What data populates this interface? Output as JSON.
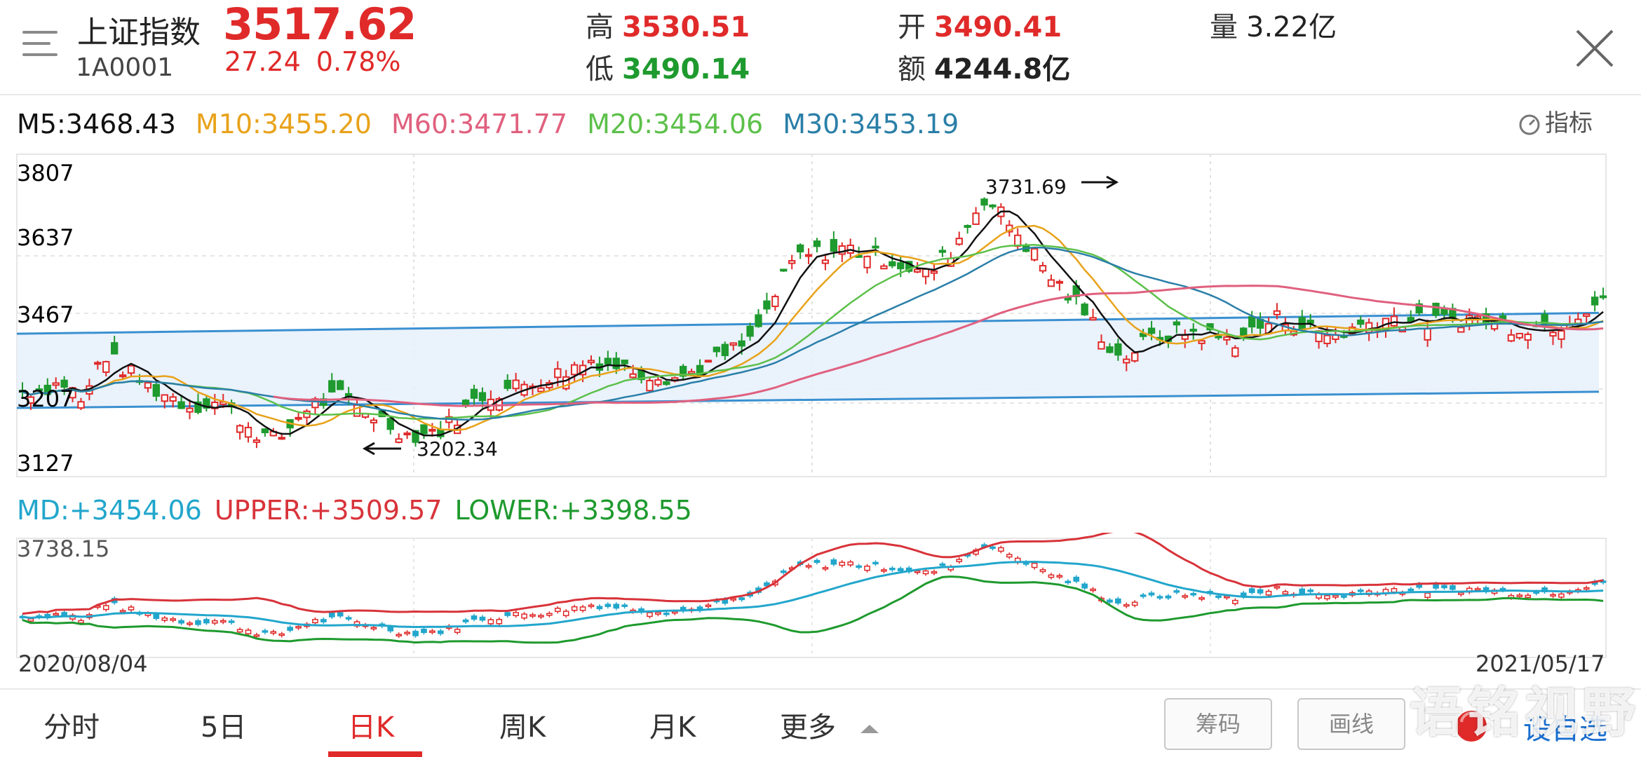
{
  "header": {
    "index_name": "上证指数",
    "index_code": "1A0001",
    "price": "3517.62",
    "change": "27.24",
    "change_pct": "0.78%",
    "high_label": "高",
    "high_value": "3530.51",
    "low_label": "低",
    "low_value": "3490.14",
    "open_label": "开",
    "open_value": "3490.41",
    "amount_label": "额",
    "amount_value": "4244.8亿",
    "volume_label": "量",
    "volume_value": "3.22亿"
  },
  "ma_legend": {
    "m5": "M5:3468.43",
    "m10": "M10:3455.20",
    "m60": "M60:3471.77",
    "m20": "M20:3454.06",
    "m30": "M30:3453.19"
  },
  "indicator_button": "指标",
  "main_chart": {
    "y_ticks": [
      "3807",
      "3637",
      "3467",
      "3207",
      "3127"
    ],
    "annotation_high": "3731.69",
    "annotation_low": "3202.34"
  },
  "boll_legend": {
    "md": "MD:+3454.06",
    "upper": "UPPER:+3509.57",
    "lower": "LOWER:+3398.55"
  },
  "boll_chart": {
    "y_top": "3738.15",
    "date_start": "2020/08/04",
    "date_end": "2021/05/17"
  },
  "tabs": [
    "分时",
    "5日",
    "日K",
    "周K",
    "月K",
    "更多"
  ],
  "active_tab": "日K",
  "buttons": {
    "chips": "筹码",
    "draw": "画线",
    "add_watchlist": "设自选"
  },
  "watermark": "语铭视野",
  "colors": {
    "up": "#e02a2a",
    "down": "#1e9a2e",
    "m5": "#111111",
    "m10": "#e8a21a",
    "m20": "#5cc04a",
    "m30": "#2a7fa8",
    "m60": "#e0607e",
    "md": "#22a6cc",
    "upper": "#d8333a",
    "lower": "#1e9a2e",
    "channel": "#3a90d0"
  }
}
